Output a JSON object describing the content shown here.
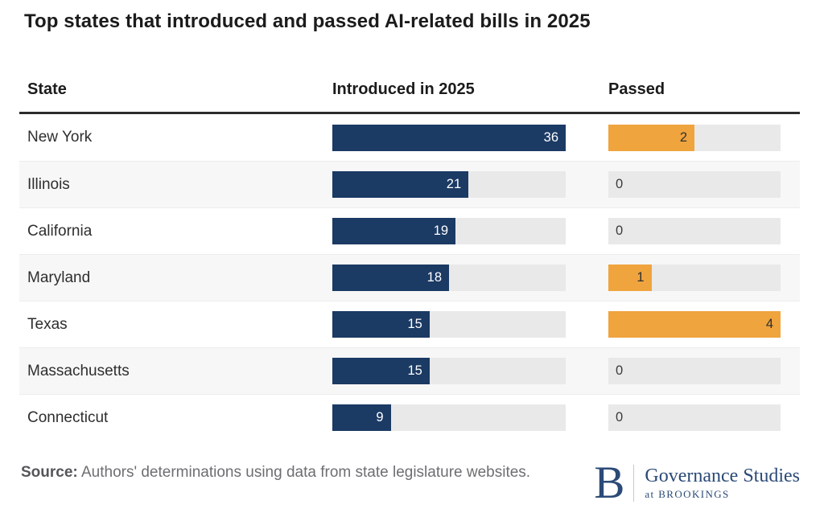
{
  "table_headers": {
    "state": "State",
    "introduced": "Introduced in 2025",
    "passed": "Passed"
  },
  "chart_data": {
    "type": "bar",
    "title": "Top states that introduced and passed AI-related bills in 2025",
    "orientation": "horizontal",
    "layout": "bars-embedded-in-table-rows",
    "value_labels": "inside-end",
    "grid": false,
    "legend": false,
    "categories": [
      "New York",
      "Illinois",
      "California",
      "Maryland",
      "Texas",
      "Massachusetts",
      "Connecticut"
    ],
    "series": [
      {
        "name": "Introduced in 2025",
        "values": [
          36,
          21,
          19,
          18,
          15,
          15,
          9
        ],
        "color": "#1b3a64",
        "axis_max": 36
      },
      {
        "name": "Passed",
        "values": [
          2,
          0,
          0,
          1,
          4,
          0,
          0
        ],
        "color": "#efa43e",
        "axis_max": 4
      }
    ]
  },
  "colors": {
    "introduced_bar": "#1b3a64",
    "passed_bar": "#efa43e",
    "bar_track": "#e9e9e9",
    "row_stripe": "#f7f7f7",
    "header_rule": "#2b2b2b",
    "logo_navy": "#2b4a77",
    "source_text": "#6d6e71"
  },
  "footer": {
    "source_label": "Source:",
    "source_text": "Authors' determinations using data from state legislature websites.",
    "logo": {
      "mark": "B",
      "name": "Governance Studies",
      "tagline": "at BROOKINGS"
    }
  }
}
